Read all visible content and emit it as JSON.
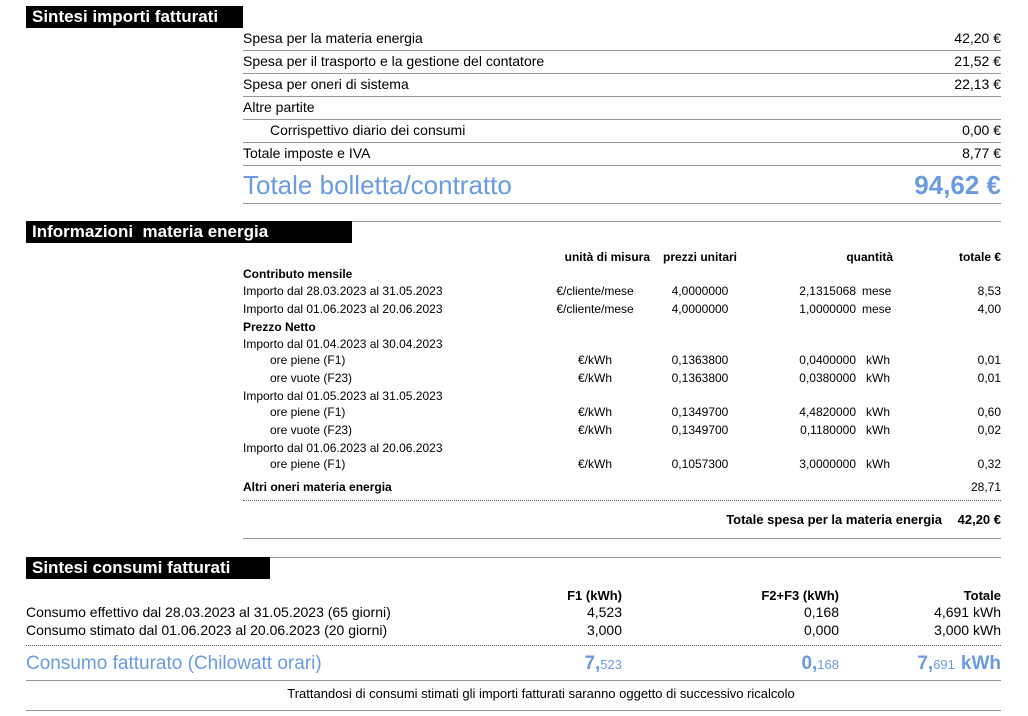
{
  "summary": {
    "title": "Sintesi importi fatturati",
    "rows": [
      {
        "label": "Spesa per la materia energia",
        "value": "42,20 €"
      },
      {
        "label": "Spesa per il trasporto e la gestione del contatore",
        "value": "21,52 €"
      },
      {
        "label": "Spesa per oneri di sistema",
        "value": "22,13 €"
      },
      {
        "label": "Altre partite",
        "items": [
          {
            "label": "Corrispettivo diario dei consumi",
            "value": "0,00 €"
          }
        ]
      },
      {
        "label": "Totale imposte e IVA",
        "value": "8,77 €"
      }
    ],
    "total": {
      "label": "Totale bolletta/contratto",
      "value": "94,62 €"
    }
  },
  "energy": {
    "title": "Informazioni  materia energia",
    "headers": [
      "unità di misura",
      "prezzi unitari",
      "quantità",
      "totale €"
    ],
    "groups": [
      {
        "title": "Contributo mensile",
        "rows": [
          {
            "label": "Importo dal 28.03.2023 al 31.05.2023",
            "unit": "€/cliente/mese",
            "price": "4,0000000",
            "qty": "2,1315068",
            "qty_unit": "mese",
            "total": "8,53"
          },
          {
            "label": "Importo dal 01.06.2023 al 20.06.2023",
            "unit": "€/cliente/mese",
            "price": "4,0000000",
            "qty": "1,0000000",
            "qty_unit": "mese",
            "total": "4,00"
          }
        ]
      },
      {
        "title": "Prezzo Netto",
        "periods": [
          {
            "label": "Importo dal 01.04.2023 al 30.04.2023",
            "rows": [
              {
                "label": "ore piene (F1)",
                "unit": "€/kWh",
                "price": "0,1363800",
                "qty": "0,0400000",
                "qty_unit": "kWh",
                "total": "0,01"
              },
              {
                "label": "ore vuote (F23)",
                "unit": "€/kWh",
                "price": "0,1363800",
                "qty": "0,0380000",
                "qty_unit": "kWh",
                "total": "0,01"
              }
            ]
          },
          {
            "label": "Importo dal 01.05.2023 al 31.05.2023",
            "rows": [
              {
                "label": "ore piene (F1)",
                "unit": "€/kWh",
                "price": "0,1349700",
                "qty": "4,4820000",
                "qty_unit": "kWh",
                "total": "0,60"
              },
              {
                "label": "ore vuote (F23)",
                "unit": "€/kWh",
                "price": "0,1349700",
                "qty": "0,1180000",
                "qty_unit": "kWh",
                "total": "0,02"
              }
            ]
          },
          {
            "label": "Importo dal 01.06.2023 al 20.06.2023",
            "rows": [
              {
                "label": "ore piene (F1)",
                "unit": "€/kWh",
                "price": "0,1057300",
                "qty": "3,0000000",
                "qty_unit": "kWh",
                "total": "0,32"
              }
            ]
          }
        ]
      }
    ],
    "other": {
      "label": "Altri oneri materia energia",
      "total": "28,71"
    },
    "total": {
      "label": "Totale spesa per la materia energia",
      "value": "42,20 €"
    }
  },
  "consumption": {
    "title": "Sintesi consumi fatturati",
    "headers": [
      "F1 (kWh)",
      "F2+F3 (kWh)",
      "Totale"
    ],
    "rows": [
      {
        "label": "Consumo effettivo dal 28.03.2023 al 31.05.2023 (65 giorni)",
        "f1": "4,523",
        "f23": "0,168",
        "total": "4,691 kWh"
      },
      {
        "label": "Consumo stimato dal 01.06.2023 al 20.06.2023 (20 giorni)",
        "f1": "3,000",
        "f23": "0,000",
        "total": "3,000 kWh"
      }
    ],
    "total": {
      "label": "Consumo fatturato (Chilowatt orari)",
      "f1": [
        "7,",
        "523"
      ],
      "f23": [
        "0,",
        "168"
      ],
      "total": [
        "7,",
        "691",
        "kWh"
      ]
    },
    "note": "Trattandosi di consumi stimati gli importi fatturati saranno oggetto di successivo ricalcolo"
  }
}
